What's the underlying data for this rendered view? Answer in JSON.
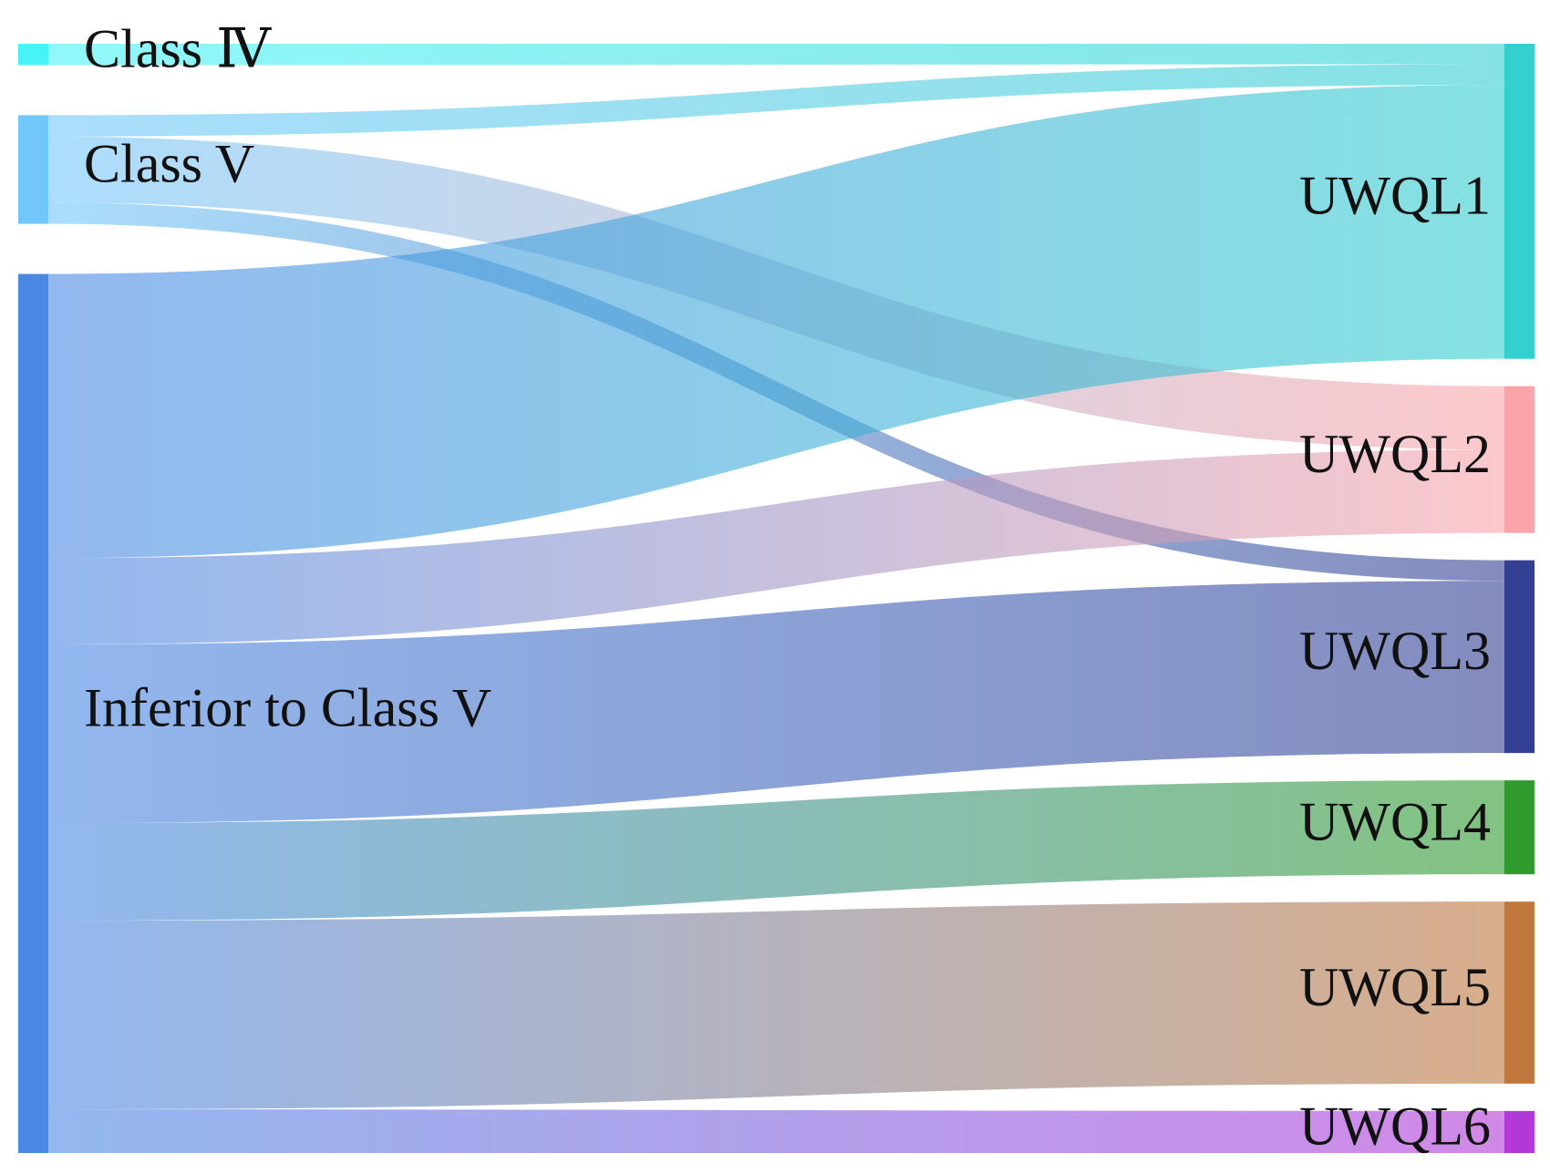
{
  "chart_data": {
    "type": "sankey",
    "title": "",
    "sources": [
      {
        "name": "Class Ⅳ",
        "color": "#46f4f6"
      },
      {
        "name": "Class V",
        "color": "#72c7fa"
      },
      {
        "name": "Inferior to Class V",
        "color": "#4a88e4"
      }
    ],
    "targets": [
      {
        "name": "UWQL1",
        "color": "#34cfcf"
      },
      {
        "name": "UWQL2",
        "color": "#f9a4a9"
      },
      {
        "name": "UWQL3",
        "color": "#323f92"
      },
      {
        "name": "UWQL4",
        "color": "#2f9a2d"
      },
      {
        "name": "UWQL5",
        "color": "#bf773e"
      },
      {
        "name": "UWQL6",
        "color": "#b239d7"
      }
    ],
    "links": [
      {
        "source": "Class Ⅳ",
        "target": "UWQL1",
        "value": 2.1
      },
      {
        "source": "Class V",
        "target": "UWQL1",
        "value": 2.1
      },
      {
        "source": "Class V",
        "target": "UWQL2",
        "value": 6.5
      },
      {
        "source": "Class V",
        "target": "UWQL3",
        "value": 2.1
      },
      {
        "source": "Inferior to Class V",
        "target": "UWQL1",
        "value": 28.0
      },
      {
        "source": "Inferior to Class V",
        "target": "UWQL2",
        "value": 8.5
      },
      {
        "source": "Inferior to Class V",
        "target": "UWQL3",
        "value": 17.6
      },
      {
        "source": "Inferior to Class V",
        "target": "UWQL4",
        "value": 9.6
      },
      {
        "source": "Inferior to Class V",
        "target": "UWQL5",
        "value": 18.6
      },
      {
        "source": "Inferior to Class V",
        "target": "UWQL6",
        "value": 4.3
      }
    ]
  }
}
